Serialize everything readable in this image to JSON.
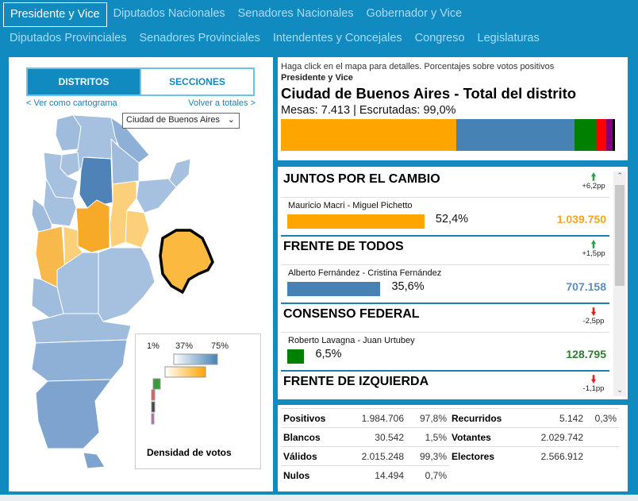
{
  "nav": {
    "row1": [
      "Presidente y Vice",
      "Diputados Nacionales",
      "Senadores Nacionales",
      "Gobernador y Vice"
    ],
    "row2": [
      "Diputados Provinciales",
      "Senadores Provinciales",
      "Intendentes y Concejales",
      "Congreso",
      "Legislaturas"
    ],
    "active": "Presidente y Vice"
  },
  "map": {
    "toggle": {
      "districts": "DISTRITOS",
      "sections": "SECCIONES",
      "active": "DISTRITOS"
    },
    "cartogram_link": "< Ver como cartograma",
    "totals_link": "Volver a totales >",
    "district_select": "Ciudad de Buenos Aires",
    "legend": {
      "ticks": [
        "1%",
        "37%",
        "75%"
      ],
      "title": "Densidad de votos"
    }
  },
  "header": {
    "hint": "Haga click en el mapa para detalles. Porcentajes sobre votos positivos",
    "category": "Presidente y Vice",
    "district": "Ciudad de Buenos Aires - Total del distrito",
    "mesas": "Mesas: 7.413 | Escrutadas: 99,0%"
  },
  "stacked_bar": [
    {
      "pct": 52.4,
      "color": "#ffa500"
    },
    {
      "pct": 35.6,
      "color": "#4682b4"
    },
    {
      "pct": 6.5,
      "color": "#008000"
    },
    {
      "pct": 2.9,
      "color": "#ff0000"
    },
    {
      "pct": 1.9,
      "color": "#800080"
    },
    {
      "pct": 0.7,
      "color": "#000000"
    }
  ],
  "parties": [
    {
      "name": "JUNTOS POR EL CAMBIO",
      "delta": "+6,2pp",
      "trend": "up",
      "candidates": "Mauricio Macri - Miguel Pichetto",
      "pct": "52,4%",
      "pct_value": 52.4,
      "votes": "1.039.750",
      "color": "#ffa500",
      "votes_color": "#f5a623"
    },
    {
      "name": "FRENTE DE TODOS",
      "delta": "+1,5pp",
      "trend": "up",
      "candidates": "Alberto Fernández - Cristina Fernández",
      "pct": "35,6%",
      "pct_value": 35.6,
      "votes": "707.158",
      "color": "#4682b4",
      "votes_color": "#5b8cc0"
    },
    {
      "name": "CONSENSO FEDERAL",
      "delta": "-2,5pp",
      "trend": "down",
      "candidates": "Roberto Lavagna - Juan Urtubey",
      "pct": "6,5%",
      "pct_value": 6.5,
      "votes": "128.795",
      "color": "#008000",
      "votes_color": "#2e7d32"
    },
    {
      "name": "FRENTE DE IZQUIERDA",
      "delta": "-1,1pp",
      "trend": "down"
    }
  ],
  "totals": {
    "positivos": {
      "label": "Positivos",
      "value": "1.984.706",
      "pct": "97,8%"
    },
    "blancos": {
      "label": "Blancos",
      "value": "30.542",
      "pct": "1,5%"
    },
    "validos": {
      "label": "Válidos",
      "value": "2.015.248",
      "pct": "99,3%"
    },
    "nulos": {
      "label": "Nulos",
      "value": "14.494",
      "pct": "0,7%"
    },
    "recurridos": {
      "label": "Recurridos",
      "value": "5.142",
      "pct": "0,3%"
    },
    "votantes": {
      "label": "Votantes",
      "value": "2.029.742"
    },
    "electores": {
      "label": "Electores",
      "value": "2.566.912"
    }
  }
}
